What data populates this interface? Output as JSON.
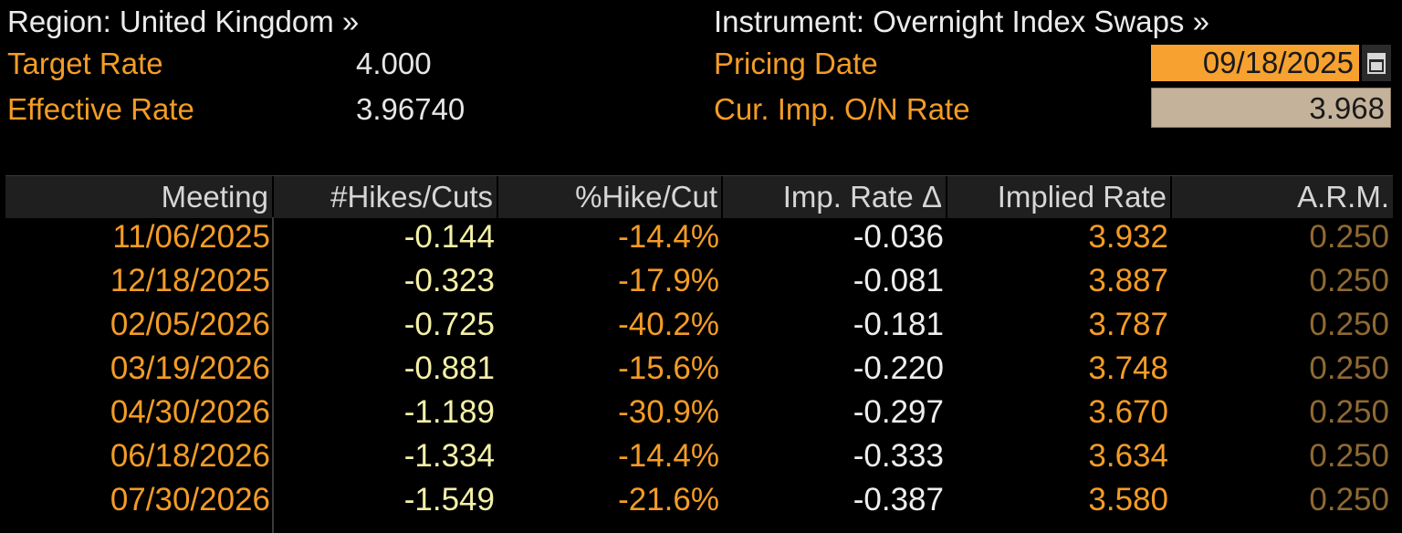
{
  "header": {
    "region_label": "Region: United Kingdom »",
    "instrument_label": "Instrument: Overnight Index Swaps »",
    "target_rate_label": "Target Rate",
    "target_rate_value": "4.000",
    "effective_rate_label": "Effective Rate",
    "effective_rate_value": "3.96740",
    "pricing_date_label": "Pricing Date",
    "pricing_date_value": "09/18/2025",
    "cur_imp_label": "Cur. Imp. O/N Rate",
    "cur_imp_value": "3.968"
  },
  "table": {
    "columns": [
      "Meeting",
      "#Hikes/Cuts",
      "%Hike/Cut",
      "Imp. Rate Δ",
      "Implied Rate",
      "A.R.M."
    ],
    "rows": [
      [
        "11/06/2025",
        "-0.144",
        "-14.4%",
        "-0.036",
        "3.932",
        "0.250"
      ],
      [
        "12/18/2025",
        "-0.323",
        "-17.9%",
        "-0.081",
        "3.887",
        "0.250"
      ],
      [
        "02/05/2026",
        "-0.725",
        "-40.2%",
        "-0.181",
        "3.787",
        "0.250"
      ],
      [
        "03/19/2026",
        "-0.881",
        "-15.6%",
        "-0.220",
        "3.748",
        "0.250"
      ],
      [
        "04/30/2026",
        "-1.189",
        "-30.9%",
        "-0.297",
        "3.670",
        "0.250"
      ],
      [
        "06/18/2026",
        "-1.334",
        "-14.4%",
        "-0.333",
        "3.634",
        "0.250"
      ],
      [
        "07/30/2026",
        "-1.549",
        "-21.6%",
        "-0.387",
        "3.580",
        "0.250"
      ]
    ]
  },
  "icons": {
    "calendar": "calendar-icon"
  }
}
